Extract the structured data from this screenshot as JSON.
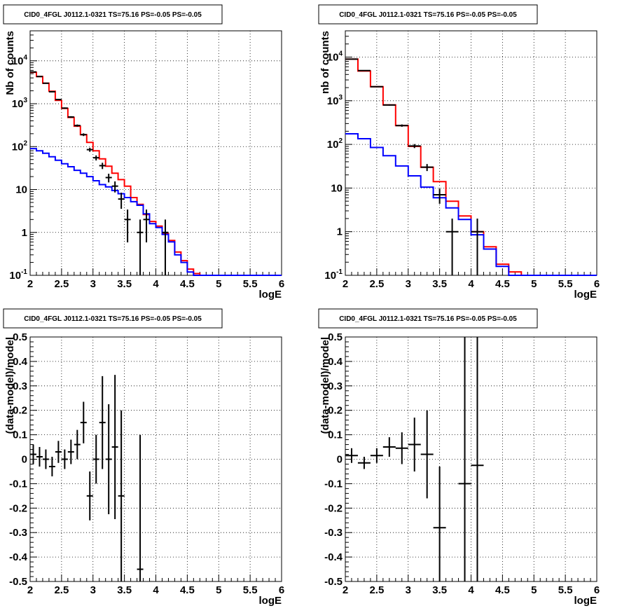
{
  "chart_data": [
    {
      "type": "line",
      "title": "CID0_4FGL J0112.1-0321 TS=75.16 PS=-0.05 PS=-0.05",
      "xlabel": "logE",
      "ylabel": "Nb of counts",
      "xlim": [
        2,
        6
      ],
      "ylim": [
        0.1,
        50000
      ],
      "yscale": "log",
      "grid": true,
      "x_ticks": [
        "2",
        "2.5",
        "3",
        "3.5",
        "4",
        "4.5",
        "5",
        "5.5",
        "6"
      ],
      "y_ticks": [
        "10^-1",
        "1",
        "10",
        "10^2",
        "10^3",
        "10^4"
      ],
      "bin_edges": [
        2.0,
        2.1,
        2.2,
        2.3,
        2.4,
        2.5,
        2.6,
        2.7,
        2.8,
        2.9,
        3.0,
        3.1,
        3.2,
        3.3,
        3.4,
        3.5,
        3.6,
        3.7,
        3.8,
        3.9,
        4.0,
        4.1,
        4.2,
        4.3,
        4.4,
        4.5,
        4.6,
        4.7,
        4.8,
        4.9,
        5.0,
        5.1,
        5.2,
        5.3,
        5.4,
        5.5,
        5.6,
        5.7,
        5.8,
        5.9,
        6.0
      ],
      "series": [
        {
          "color": "#ff0000",
          "values": [
            5400,
            4300,
            3000,
            1950,
            1200,
            780,
            480,
            300,
            190,
            125,
            80,
            52,
            35,
            24,
            17,
            12,
            6.5,
            4.5,
            2.6,
            1.8,
            1.4,
            0.95,
            0.65,
            0.35,
            0.22,
            0.14,
            0.11,
            0.1,
            0.1,
            0.1,
            0.1,
            0.1,
            0.1,
            0.1,
            0.1,
            0.1,
            0.1,
            0.1,
            0.1,
            0.1
          ]
        },
        {
          "color": "#0000ff",
          "values": [
            90,
            80,
            70,
            58,
            48,
            40,
            34,
            28,
            24,
            20,
            16,
            13,
            11.5,
            9.5,
            8,
            6.5,
            5.2,
            4.3,
            2.7,
            1.6,
            1.3,
            0.9,
            0.6,
            0.3,
            0.2,
            0.12,
            0.1,
            0.1,
            0.1,
            0.1,
            0.1,
            0.1,
            0.1,
            0.1,
            0.1,
            0.1,
            0.1,
            0.1,
            0.1,
            0.1
          ]
        }
      ],
      "data_points": [
        {
          "x": 2.05,
          "y": 5500
        },
        {
          "x": 2.15,
          "y": 4300
        },
        {
          "x": 2.25,
          "y": 3000
        },
        {
          "x": 2.35,
          "y": 1900
        },
        {
          "x": 2.45,
          "y": 1250
        },
        {
          "x": 2.55,
          "y": 790
        },
        {
          "x": 2.65,
          "y": 490
        },
        {
          "x": 2.75,
          "y": 310
        },
        {
          "x": 2.85,
          "y": 190
        },
        {
          "x": 2.95,
          "y": 85
        },
        {
          "x": 3.05,
          "y": 55
        },
        {
          "x": 3.15,
          "y": 36
        },
        {
          "x": 3.25,
          "y": 19
        },
        {
          "x": 3.35,
          "y": 12
        },
        {
          "x": 3.45,
          "y": 6
        },
        {
          "x": 3.55,
          "y": 2
        },
        {
          "x": 3.75,
          "y": 1
        },
        {
          "x": 3.85,
          "y": 2
        },
        {
          "x": 4.15,
          "y": 1
        }
      ]
    },
    {
      "type": "line",
      "title": "CID0_4FGL J0112.1-0321 TS=75.16 PS=-0.05 PS=-0.05",
      "xlabel": "logE",
      "ylabel": "nb of counts",
      "xlim": [
        2,
        6
      ],
      "ylim": [
        0.1,
        40000
      ],
      "yscale": "log",
      "grid": true,
      "x_ticks": [
        "2",
        "2.5",
        "3",
        "3.5",
        "4",
        "4.5",
        "5",
        "5.5",
        "6"
      ],
      "y_ticks": [
        "10^-1",
        "1",
        "10",
        "10^2",
        "10^3",
        "10^4"
      ],
      "bin_edges": [
        2.0,
        2.2,
        2.4,
        2.6,
        2.8,
        3.0,
        3.2,
        3.4,
        3.6,
        3.8,
        4.0,
        4.2,
        4.4,
        4.6,
        4.8,
        5.0,
        5.2,
        5.4,
        5.6,
        5.8,
        6.0
      ],
      "series": [
        {
          "color": "#ff0000",
          "values": [
            9000,
            4800,
            2100,
            800,
            270,
            90,
            30,
            14,
            5,
            2.3,
            1,
            0.45,
            0.18,
            0.12,
            0.1,
            0.1,
            0.1,
            0.1,
            0.1,
            0.1
          ]
        },
        {
          "color": "#0000ff",
          "values": [
            175,
            135,
            85,
            55,
            32,
            19,
            10.5,
            6,
            3.5,
            1.9,
            0.85,
            0.4,
            0.16,
            0.1,
            0.1,
            0.1,
            0.1,
            0.1,
            0.1,
            0.1
          ]
        }
      ],
      "data_points": [
        {
          "x": 2.1,
          "y": 9000
        },
        {
          "x": 2.3,
          "y": 4900
        },
        {
          "x": 2.5,
          "y": 2100
        },
        {
          "x": 2.7,
          "y": 800
        },
        {
          "x": 2.9,
          "y": 270
        },
        {
          "x": 3.1,
          "y": 92
        },
        {
          "x": 3.3,
          "y": 30
        },
        {
          "x": 3.5,
          "y": 7
        },
        {
          "x": 3.7,
          "y": 1
        },
        {
          "x": 4.1,
          "y": 1
        }
      ]
    },
    {
      "type": "scatter",
      "title": "CID0_4FGL J0112.1-0321 TS=75.16 PS=-0.05 PS=-0.05",
      "xlabel": "logE",
      "ylabel": "(data-model)/model",
      "xlim": [
        2,
        6
      ],
      "ylim": [
        -0.5,
        0.5
      ],
      "grid": true,
      "x_ticks": [
        "2",
        "2.5",
        "3",
        "3.5",
        "4",
        "4.5",
        "5",
        "5.5",
        "6"
      ],
      "y_ticks": [
        "-0.5",
        "-0.4",
        "-0.3",
        "-0.2",
        "-0.1",
        "0",
        "0.1",
        "0.2",
        "0.3",
        "0.4",
        "0.5"
      ],
      "points": [
        {
          "x": 2.05,
          "y": 0.02,
          "err": 0.04
        },
        {
          "x": 2.15,
          "y": 0.01,
          "err": 0.04
        },
        {
          "x": 2.25,
          "y": 0.0,
          "err": 0.04
        },
        {
          "x": 2.35,
          "y": -0.03,
          "err": 0.04
        },
        {
          "x": 2.45,
          "y": 0.03,
          "err": 0.045
        },
        {
          "x": 2.55,
          "y": 0.0,
          "err": 0.04
        },
        {
          "x": 2.65,
          "y": 0.03,
          "err": 0.05
        },
        {
          "x": 2.75,
          "y": 0.06,
          "err": 0.06
        },
        {
          "x": 2.85,
          "y": 0.15,
          "err": 0.085
        },
        {
          "x": 2.95,
          "y": -0.15,
          "err": 0.1
        },
        {
          "x": 3.05,
          "y": 0.0,
          "err": 0.1
        },
        {
          "x": 3.15,
          "y": 0.15,
          "err": 0.19
        },
        {
          "x": 3.25,
          "y": 0.0,
          "err": 0.225
        },
        {
          "x": 3.35,
          "y": 0.05,
          "err": 0.295
        },
        {
          "x": 3.45,
          "y": -0.15,
          "err": 0.35
        },
        {
          "x": 3.75,
          "y": -0.45,
          "err": 0.55
        }
      ]
    },
    {
      "type": "scatter",
      "title": "CID0_4FGL J0112.1-0321 TS=75.16 PS=-0.05 PS=-0.05",
      "xlabel": "logE",
      "ylabel": "(data-model)/model",
      "xlim": [
        2,
        6
      ],
      "ylim": [
        -0.5,
        0.5
      ],
      "grid": true,
      "x_ticks": [
        "2",
        "2.5",
        "3",
        "3.5",
        "4",
        "4.5",
        "5",
        "5.5",
        "6"
      ],
      "y_ticks": [
        "-0.5",
        "-0.4",
        "-0.3",
        "-0.2",
        "-0.1",
        "0",
        "0.1",
        "0.2",
        "0.3",
        "0.4",
        "0.5"
      ],
      "points": [
        {
          "x": 2.1,
          "y": 0.015,
          "err": 0.03
        },
        {
          "x": 2.3,
          "y": -0.015,
          "err": 0.025
        },
        {
          "x": 2.5,
          "y": 0.015,
          "err": 0.03
        },
        {
          "x": 2.7,
          "y": 0.05,
          "err": 0.04
        },
        {
          "x": 2.9,
          "y": 0.045,
          "err": 0.065
        },
        {
          "x": 3.1,
          "y": 0.06,
          "err": 0.11
        },
        {
          "x": 3.3,
          "y": 0.02,
          "err": 0.18
        },
        {
          "x": 3.5,
          "y": -0.28,
          "err": 0.25
        },
        {
          "x": 3.9,
          "y": -0.1,
          "err": 0.7
        },
        {
          "x": 4.1,
          "y": -0.025,
          "err": 0.7
        }
      ]
    }
  ]
}
